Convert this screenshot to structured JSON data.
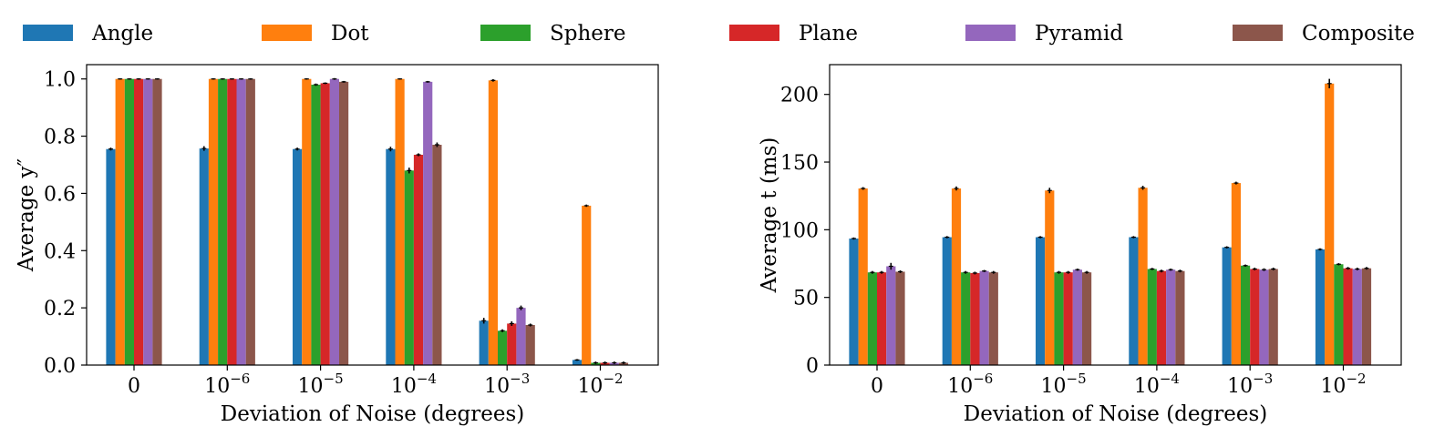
{
  "legend": [
    {
      "label": "Angle",
      "color": "#1f77b4"
    },
    {
      "label": "Dot",
      "color": "#ff7f0e"
    },
    {
      "label": "Sphere",
      "color": "#2ca02c"
    },
    {
      "label": "Plane",
      "color": "#d62728"
    },
    {
      "label": "Pyramid",
      "color": "#9467bd"
    },
    {
      "label": "Composite",
      "color": "#8c564b"
    }
  ],
  "chart_data": [
    {
      "type": "bar",
      "xlabel": "Deviation of Noise (degrees)",
      "ylabel": "Average y″",
      "ylim": [
        0,
        1.05
      ],
      "yticks": [
        0.0,
        0.2,
        0.4,
        0.6,
        0.8,
        1.0
      ],
      "ytick_labels": [
        "0.0",
        "0.2",
        "0.4",
        "0.6",
        "0.8",
        "1.0"
      ],
      "categories": [
        {
          "base": "0",
          "exp": ""
        },
        {
          "base": "10",
          "exp": "−6"
        },
        {
          "base": "10",
          "exp": "−5"
        },
        {
          "base": "10",
          "exp": "−4"
        },
        {
          "base": "10",
          "exp": "−3"
        },
        {
          "base": "10",
          "exp": "−2"
        }
      ],
      "series": [
        {
          "name": "Angle",
          "values": [
            0.755,
            0.757,
            0.755,
            0.755,
            0.155,
            0.018
          ],
          "errors": [
            0.005,
            0.008,
            0.005,
            0.008,
            0.01,
            0.003
          ]
        },
        {
          "name": "Dot",
          "values": [
            1.0,
            1.0,
            1.0,
            1.0,
            0.995,
            0.557
          ],
          "errors": [
            0.0,
            0.0,
            0.0,
            0.0,
            0.002,
            0.004
          ]
        },
        {
          "name": "Sphere",
          "values": [
            1.0,
            1.0,
            0.98,
            0.68,
            0.12,
            0.008
          ],
          "errors": [
            0.0,
            0.0,
            0.004,
            0.01,
            0.005,
            0.002
          ]
        },
        {
          "name": "Plane",
          "values": [
            1.0,
            1.0,
            0.985,
            0.735,
            0.145,
            0.008
          ],
          "errors": [
            0.0,
            0.0,
            0.003,
            0.005,
            0.008,
            0.002
          ]
        },
        {
          "name": "Pyramid",
          "values": [
            1.0,
            1.0,
            1.0,
            0.99,
            0.2,
            0.008
          ],
          "errors": [
            0.0,
            0.0,
            0.003,
            0.003,
            0.008,
            0.002
          ]
        },
        {
          "name": "Composite",
          "values": [
            1.0,
            1.0,
            0.99,
            0.77,
            0.14,
            0.008
          ],
          "errors": [
            0.0,
            0.0,
            0.003,
            0.008,
            0.005,
            0.002
          ]
        }
      ]
    },
    {
      "type": "bar",
      "xlabel": "Deviation of Noise (degrees)",
      "ylabel": "Average t (ms)",
      "ylim": [
        0,
        222
      ],
      "yticks": [
        0,
        50,
        100,
        150,
        200
      ],
      "ytick_labels": [
        "0",
        "50",
        "100",
        "150",
        "200"
      ],
      "categories": [
        {
          "base": "0",
          "exp": ""
        },
        {
          "base": "10",
          "exp": "−6"
        },
        {
          "base": "10",
          "exp": "−5"
        },
        {
          "base": "10",
          "exp": "−4"
        },
        {
          "base": "10",
          "exp": "−3"
        },
        {
          "base": "10",
          "exp": "−2"
        }
      ],
      "series": [
        {
          "name": "Angle",
          "values": [
            93.5,
            94.5,
            94.5,
            94.5,
            87.0,
            85.5
          ],
          "errors": [
            0.8,
            0.8,
            0.8,
            0.8,
            0.8,
            0.8
          ]
        },
        {
          "name": "Dot",
          "values": [
            130.5,
            130.5,
            129.0,
            131.0,
            134.5,
            208.0
          ],
          "errors": [
            1.0,
            1.5,
            2.0,
            1.5,
            1.0,
            3.5
          ]
        },
        {
          "name": "Sphere",
          "values": [
            68.5,
            68.5,
            68.5,
            71.0,
            73.5,
            74.5
          ],
          "errors": [
            0.5,
            0.5,
            0.5,
            0.8,
            0.8,
            0.8
          ]
        },
        {
          "name": "Plane",
          "values": [
            68.5,
            68.0,
            68.5,
            69.5,
            71.0,
            71.5
          ],
          "errors": [
            0.5,
            0.5,
            0.5,
            0.5,
            0.5,
            0.5
          ]
        },
        {
          "name": "Pyramid",
          "values": [
            73.0,
            69.5,
            70.5,
            70.5,
            70.5,
            71.0
          ],
          "errors": [
            2.5,
            0.8,
            0.8,
            0.8,
            0.5,
            0.5
          ]
        },
        {
          "name": "Composite",
          "values": [
            69.0,
            68.5,
            68.5,
            69.5,
            71.0,
            71.5
          ],
          "errors": [
            0.5,
            0.5,
            0.5,
            0.5,
            0.5,
            0.5
          ]
        }
      ]
    }
  ]
}
